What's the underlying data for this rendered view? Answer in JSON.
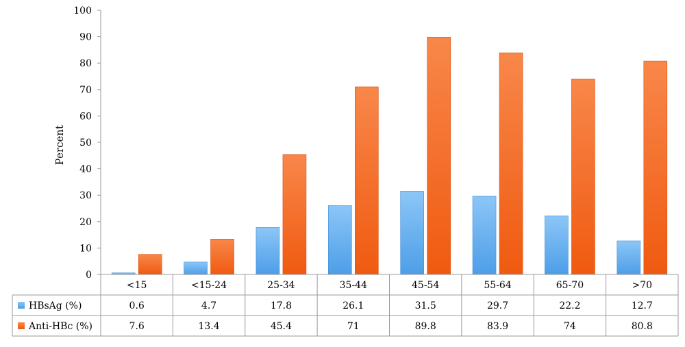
{
  "chart_data": {
    "type": "bar",
    "ylabel": "Percent",
    "ylim": [
      0,
      100
    ],
    "yticks": [
      0,
      10,
      20,
      30,
      40,
      50,
      60,
      70,
      80,
      90,
      100
    ],
    "categories": [
      "<15",
      "<15-24",
      "25-34",
      "35-44",
      "45-54",
      "55-64",
      "65-70",
      ">70"
    ],
    "series": [
      {
        "name": "HBsAg (%)",
        "color": "#5aaaf0",
        "values": [
          0.6,
          4.7,
          17.8,
          26.1,
          31.5,
          29.7,
          22.2,
          12.7
        ]
      },
      {
        "name": "Anti-HBc (%)",
        "color": "#f5651a",
        "values": [
          7.6,
          13.4,
          45.4,
          71,
          89.8,
          83.9,
          74,
          80.8
        ]
      }
    ],
    "data_table": true,
    "grid": false,
    "legend": "in data table"
  }
}
